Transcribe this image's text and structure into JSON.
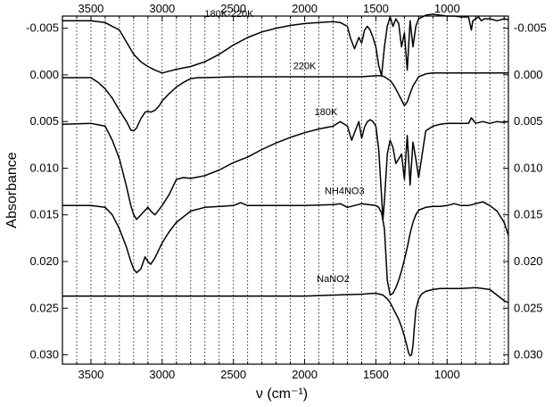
{
  "chart_data": {
    "type": "line",
    "title": "",
    "xlabel": "ν (cm⁻¹)",
    "ylabel": "Absorbance",
    "xlim": [
      3700,
      570
    ],
    "ylim": [
      -0.0063,
      0.031
    ],
    "x_ticks_bottom": [
      "3500",
      "3000",
      "2500",
      "2000",
      "1500",
      "1000"
    ],
    "x_ticks_top": [
      "3500",
      "3000",
      "2500",
      "2000",
      "1500",
      "1000"
    ],
    "x_tick_values": [
      3500,
      3000,
      2500,
      2000,
      1500,
      1000
    ],
    "y_ticks_left": [
      "-0.005",
      "0.000",
      "0.005",
      "0.010",
      "0.015",
      "0.020",
      "0.025",
      "0.030"
    ],
    "y_ticks_right": [
      "-0.005",
      "0.000",
      "0.005",
      "0.010",
      "0.015",
      "0.020",
      "0.025",
      "0.030"
    ],
    "y_tick_values": [
      -0.005,
      0.0,
      0.005,
      0.01,
      0.015,
      0.02,
      0.025,
      0.03
    ],
    "y_reversed": true,
    "grid": "vertical dotted",
    "series": [
      {
        "name": "180K-220K",
        "label_x": 2530,
        "label_y": -0.0062,
        "x": [
          3700,
          3500,
          3400,
          3300,
          3250,
          3200,
          3150,
          3100,
          3050,
          3000,
          2950,
          2900,
          2800,
          2700,
          2600,
          2500,
          2400,
          2300,
          2200,
          2100,
          2000,
          1900,
          1800,
          1750,
          1700,
          1680,
          1650,
          1620,
          1600,
          1580,
          1560,
          1540,
          1520,
          1500,
          1480,
          1460,
          1440,
          1420,
          1400,
          1380,
          1360,
          1340,
          1320,
          1300,
          1280,
          1260,
          1240,
          1220,
          1200,
          1150,
          1100,
          1050,
          1000,
          950,
          900,
          850,
          830,
          820,
          800,
          780,
          760,
          740,
          700,
          650,
          600,
          570
        ],
        "y": [
          -0.0058,
          -0.0058,
          -0.0056,
          -0.0048,
          -0.0035,
          -0.0022,
          -0.0014,
          -0.0009,
          -0.0005,
          -0.0002,
          -0.0004,
          -0.0006,
          -0.0009,
          -0.0014,
          -0.0022,
          -0.0032,
          -0.004,
          -0.0046,
          -0.005,
          -0.0053,
          -0.0055,
          -0.0056,
          -0.0057,
          -0.0056,
          -0.0052,
          -0.004,
          -0.0028,
          -0.004,
          -0.0034,
          -0.0048,
          -0.0052,
          -0.0048,
          -0.004,
          -0.003,
          -0.001,
          0.0001,
          -0.003,
          -0.0052,
          -0.0062,
          -0.0052,
          -0.006,
          -0.0055,
          -0.003,
          -0.0045,
          -0.0005,
          -0.0058,
          -0.003,
          -0.0052,
          -0.006,
          -0.0064,
          -0.0065,
          -0.0064,
          -0.0063,
          -0.0063,
          -0.0062,
          -0.0062,
          -0.0048,
          -0.0058,
          -0.006,
          -0.0062,
          -0.0058,
          -0.006,
          -0.006,
          -0.0058,
          -0.006,
          -0.0059
        ]
      },
      {
        "name": "220K",
        "label_x": 2000,
        "label_y": -0.0006,
        "x": [
          3700,
          3600,
          3500,
          3450,
          3400,
          3350,
          3300,
          3250,
          3220,
          3200,
          3180,
          3150,
          3120,
          3100,
          3080,
          3050,
          3020,
          3000,
          2950,
          2900,
          2850,
          2800,
          2750,
          2700,
          2500,
          2000,
          1800,
          1600,
          1500,
          1480,
          1460,
          1440,
          1420,
          1400,
          1380,
          1360,
          1340,
          1320,
          1300,
          1280,
          1260,
          1240,
          1200,
          1150,
          1100,
          1000,
          900,
          800,
          700,
          600,
          570
        ],
        "y": [
          0.0003,
          0.0003,
          0.0003,
          0.0008,
          0.0015,
          0.0025,
          0.0038,
          0.005,
          0.0059,
          0.006,
          0.0057,
          0.0047,
          0.004,
          0.0039,
          0.004,
          0.0038,
          0.0033,
          0.0028,
          0.002,
          0.0013,
          0.0008,
          0.0004,
          0.0003,
          0.0003,
          0.0002,
          0.0002,
          0.0002,
          0.0002,
          0.0001,
          0.0001,
          0.0001,
          0.0002,
          0.0004,
          0.0006,
          0.001,
          0.0015,
          0.0021,
          0.0027,
          0.0033,
          0.0029,
          0.002,
          0.0012,
          0.0002,
          -0.0001,
          -0.0002,
          -0.0002,
          -0.0002,
          -0.0002,
          -0.0002,
          -0.0002,
          -0.0002
        ]
      },
      {
        "name": "180K",
        "label_x": 1850,
        "label_y": 0.0043,
        "x": [
          3700,
          3500,
          3400,
          3350,
          3300,
          3250,
          3220,
          3200,
          3180,
          3150,
          3100,
          3080,
          3050,
          3000,
          2950,
          2900,
          2850,
          2800,
          2700,
          2600,
          2500,
          2400,
          2300,
          2200,
          2100,
          2000,
          1900,
          1800,
          1750,
          1700,
          1670,
          1650,
          1620,
          1600,
          1580,
          1560,
          1540,
          1520,
          1500,
          1480,
          1460,
          1450,
          1440,
          1420,
          1400,
          1380,
          1360,
          1340,
          1320,
          1300,
          1280,
          1260,
          1240,
          1220,
          1200,
          1150,
          1100,
          1050,
          1000,
          950,
          900,
          850,
          830,
          800,
          750,
          700,
          650,
          600,
          570
        ],
        "y": [
          0.0053,
          0.0052,
          0.0055,
          0.007,
          0.009,
          0.012,
          0.014,
          0.015,
          0.0155,
          0.015,
          0.0142,
          0.0146,
          0.015,
          0.014,
          0.0128,
          0.0112,
          0.011,
          0.0111,
          0.0108,
          0.0102,
          0.0094,
          0.0088,
          0.008,
          0.0073,
          0.0067,
          0.0062,
          0.0058,
          0.0055,
          0.005,
          0.0055,
          0.007,
          0.0062,
          0.005,
          0.0068,
          0.0056,
          0.005,
          0.0048,
          0.005,
          0.0055,
          0.008,
          0.013,
          0.0155,
          0.0135,
          0.0085,
          0.007,
          0.0078,
          0.0095,
          0.009,
          0.0085,
          0.0112,
          0.0065,
          0.0118,
          0.0072,
          0.009,
          0.011,
          0.006,
          0.0055,
          0.0053,
          0.0052,
          0.0052,
          0.0052,
          0.0052,
          0.0046,
          0.0052,
          0.005,
          0.0052,
          0.005,
          0.0051,
          0.005
        ]
      },
      {
        "name": "NH4NO3",
        "label_x": 1720,
        "label_y": 0.0128,
        "x": [
          3700,
          3500,
          3400,
          3350,
          3300,
          3250,
          3220,
          3200,
          3180,
          3150,
          3120,
          3100,
          3080,
          3050,
          3000,
          2950,
          2900,
          2850,
          2800,
          2700,
          2500,
          2450,
          2400,
          2000,
          1800,
          1750,
          1700,
          1600,
          1550,
          1500,
          1480,
          1460,
          1440,
          1420,
          1400,
          1380,
          1360,
          1340,
          1320,
          1300,
          1280,
          1260,
          1240,
          1220,
          1200,
          1150,
          1100,
          1050,
          1000,
          950,
          900,
          850,
          800,
          750,
          700,
          650,
          600,
          570
        ],
        "y": [
          0.014,
          0.014,
          0.0142,
          0.015,
          0.0165,
          0.0185,
          0.02,
          0.0208,
          0.0212,
          0.0208,
          0.0195,
          0.02,
          0.0203,
          0.0196,
          0.018,
          0.0168,
          0.0158,
          0.0152,
          0.0146,
          0.0142,
          0.014,
          0.0137,
          0.014,
          0.014,
          0.0139,
          0.0138,
          0.0142,
          0.0138,
          0.0139,
          0.014,
          0.0142,
          0.0148,
          0.0165,
          0.022,
          0.0236,
          0.0234,
          0.0228,
          0.022,
          0.021,
          0.0198,
          0.0185,
          0.017,
          0.0158,
          0.015,
          0.0145,
          0.0142,
          0.0141,
          0.0141,
          0.014,
          0.0138,
          0.014,
          0.014,
          0.0138,
          0.0136,
          0.014,
          0.0146,
          0.0158,
          0.0172
        ]
      },
      {
        "name": "NaNO2",
        "label_x": 1800,
        "label_y": 0.0222,
        "x": [
          3700,
          3500,
          3000,
          2500,
          2000,
          1800,
          1600,
          1500,
          1450,
          1420,
          1400,
          1380,
          1360,
          1340,
          1320,
          1300,
          1280,
          1270,
          1260,
          1250,
          1240,
          1230,
          1220,
          1200,
          1180,
          1150,
          1100,
          1050,
          1000,
          900,
          800,
          750,
          700,
          650,
          600,
          570
        ],
        "y": [
          0.0237,
          0.0237,
          0.0237,
          0.0237,
          0.0237,
          0.0236,
          0.0235,
          0.0234,
          0.0236,
          0.024,
          0.0244,
          0.025,
          0.0256,
          0.0262,
          0.027,
          0.028,
          0.0292,
          0.0298,
          0.0301,
          0.03,
          0.029,
          0.027,
          0.0252,
          0.024,
          0.0235,
          0.0232,
          0.023,
          0.0229,
          0.0229,
          0.0229,
          0.0228,
          0.0229,
          0.023,
          0.0236,
          0.0242,
          0.0244
        ]
      }
    ]
  }
}
